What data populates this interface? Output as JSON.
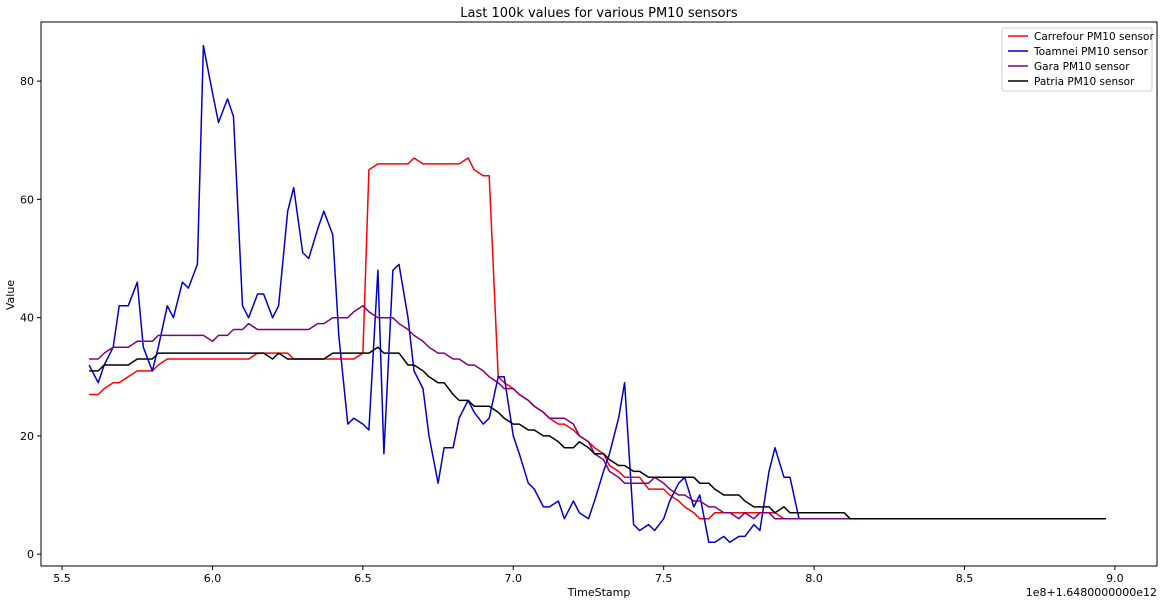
{
  "chart_data": {
    "type": "line",
    "title": "Last 100k values for various PM10 sensors",
    "xlabel": "TimeStamp",
    "ylabel": "Value",
    "x_offset_label": "1e8+1.6480000000e12",
    "xlim": [
      5.43,
      9.14
    ],
    "ylim": [
      -2,
      90
    ],
    "xticks": [
      "5.5",
      "6.0",
      "6.5",
      "7.0",
      "7.5",
      "8.0",
      "8.5",
      "9.0"
    ],
    "yticks": [
      "0",
      "20",
      "40",
      "60",
      "80"
    ],
    "xtick_values": [
      5.5,
      6.0,
      6.5,
      7.0,
      7.5,
      8.0,
      8.5,
      9.0
    ],
    "ytick_values": [
      0,
      20,
      40,
      60,
      80
    ],
    "grid": false,
    "legend_position": "top-right",
    "x": [
      5.59,
      5.62,
      5.64,
      5.67,
      5.69,
      5.72,
      5.75,
      5.77,
      5.8,
      5.82,
      5.85,
      5.87,
      5.9,
      5.92,
      5.95,
      5.97,
      6.0,
      6.02,
      6.05,
      6.07,
      6.1,
      6.12,
      6.15,
      6.17,
      6.2,
      6.22,
      6.25,
      6.27,
      6.3,
      6.32,
      6.35,
      6.37,
      6.4,
      6.42,
      6.45,
      6.47,
      6.5,
      6.52,
      6.55,
      6.57,
      6.6,
      6.62,
      6.65,
      6.67,
      6.7,
      6.72,
      6.75,
      6.77,
      6.8,
      6.82,
      6.85,
      6.87,
      6.9,
      6.92,
      6.95,
      6.97,
      7.0,
      7.02,
      7.05,
      7.07,
      7.1,
      7.12,
      7.15,
      7.17,
      7.2,
      7.22,
      7.25,
      7.27,
      7.3,
      7.32,
      7.35,
      7.37,
      7.4,
      7.42,
      7.45,
      7.47,
      7.5,
      7.52,
      7.55,
      7.57,
      7.6,
      7.62,
      7.65,
      7.67,
      7.7,
      7.72,
      7.75,
      7.77,
      7.8,
      7.82,
      7.85,
      7.87,
      7.9,
      7.92,
      7.95,
      7.97,
      8.0,
      8.02,
      8.05,
      8.07,
      8.1,
      8.12,
      8.15,
      8.17,
      8.2,
      8.22,
      8.25,
      8.27,
      8.3,
      8.32,
      8.35,
      8.37,
      8.4,
      8.42,
      8.45,
      8.47,
      8.5,
      8.52,
      8.55,
      8.57,
      8.6,
      8.62,
      8.65,
      8.67,
      8.7,
      8.72,
      8.75,
      8.77,
      8.8,
      8.82,
      8.85,
      8.87,
      8.9,
      8.92,
      8.95,
      8.97
    ],
    "series": [
      {
        "name": "Carrefour PM10 sensor",
        "color": "#ff0000",
        "values": [
          27,
          27,
          28,
          29,
          29,
          30,
          31,
          31,
          31,
          32,
          33,
          33,
          33,
          33,
          33,
          33,
          33,
          33,
          33,
          33,
          33,
          33,
          34,
          34,
          34,
          34,
          34,
          33,
          33,
          33,
          33,
          33,
          33,
          33,
          33,
          33,
          34,
          65,
          66,
          66,
          66,
          66,
          66,
          67,
          66,
          66,
          66,
          66,
          66,
          66,
          67,
          65,
          64,
          64,
          30,
          29,
          28,
          27,
          26,
          25,
          24,
          23,
          22,
          22,
          21,
          20,
          19,
          18,
          17,
          15,
          14,
          13,
          13,
          13,
          11,
          11,
          11,
          10,
          9,
          8,
          7,
          6,
          6,
          7,
          7,
          7,
          7,
          7,
          7,
          7,
          7,
          7,
          6,
          6,
          6,
          6,
          6,
          6,
          6,
          6,
          6,
          6,
          6,
          6,
          6,
          6,
          6,
          6,
          6,
          6,
          6,
          6,
          6,
          6,
          6,
          6,
          6,
          6,
          6,
          6,
          6,
          6,
          6,
          6,
          6,
          6,
          6,
          6,
          6,
          6,
          6,
          6,
          6,
          6,
          6,
          6
        ]
      },
      {
        "name": "Toamnei PM10 sensor",
        "color": "#0000cc",
        "values": [
          32,
          29,
          32,
          35,
          42,
          42,
          46,
          35,
          31,
          35,
          42,
          40,
          46,
          45,
          49,
          86,
          78,
          73,
          77,
          74,
          42,
          40,
          44,
          44,
          40,
          42,
          58,
          62,
          51,
          50,
          55,
          58,
          54,
          37,
          22,
          23,
          22,
          21,
          48,
          17,
          48,
          49,
          40,
          31,
          28,
          20,
          12,
          18,
          18,
          23,
          26,
          24,
          22,
          23,
          30,
          30,
          20,
          17,
          12,
          11,
          8,
          8,
          9,
          6,
          9,
          7,
          6,
          9,
          14,
          17,
          23,
          29,
          5,
          4,
          5,
          4,
          6,
          9,
          12,
          13,
          8,
          10,
          2,
          2,
          3,
          2,
          3,
          3,
          5,
          4,
          14,
          18,
          13,
          13,
          6,
          6,
          6,
          6,
          6,
          6,
          6,
          6,
          6,
          6,
          6,
          6,
          6,
          6,
          6,
          6,
          6,
          6,
          6,
          6,
          6,
          6,
          6,
          6,
          6,
          6,
          6,
          6,
          6,
          6,
          6,
          6,
          6,
          6,
          6,
          6,
          6,
          6,
          6,
          6,
          6,
          6
        ]
      },
      {
        "name": "Gara PM10 sensor",
        "color": "#800080",
        "values": [
          33,
          33,
          34,
          35,
          35,
          35,
          36,
          36,
          36,
          37,
          37,
          37,
          37,
          37,
          37,
          37,
          36,
          37,
          37,
          38,
          38,
          39,
          38,
          38,
          38,
          38,
          38,
          38,
          38,
          38,
          39,
          39,
          40,
          40,
          40,
          41,
          42,
          41,
          40,
          40,
          40,
          39,
          38,
          37,
          36,
          35,
          34,
          34,
          33,
          33,
          32,
          32,
          31,
          30,
          29,
          28,
          28,
          27,
          26,
          25,
          24,
          23,
          23,
          23,
          22,
          20,
          19,
          17,
          16,
          14,
          13,
          12,
          12,
          12,
          12,
          13,
          12,
          11,
          10,
          10,
          9,
          9,
          8,
          8,
          7,
          7,
          6,
          7,
          6,
          7,
          7,
          6,
          6,
          6,
          6,
          6,
          6,
          6,
          6,
          6,
          6,
          6,
          6,
          6,
          6,
          6,
          6,
          6,
          6,
          6,
          6,
          6,
          6,
          6,
          6,
          6,
          6,
          6,
          6,
          6,
          6,
          6,
          6,
          6,
          6,
          6,
          6,
          6,
          6,
          6,
          6,
          6,
          6,
          6,
          6,
          6
        ]
      },
      {
        "name": "Patria PM10 sensor",
        "color": "#000000",
        "values": [
          31,
          31,
          32,
          32,
          32,
          32,
          33,
          33,
          33,
          34,
          34,
          34,
          34,
          34,
          34,
          34,
          34,
          34,
          34,
          34,
          34,
          34,
          34,
          34,
          33,
          34,
          33,
          33,
          33,
          33,
          33,
          33,
          34,
          34,
          34,
          34,
          34,
          34,
          35,
          34,
          34,
          34,
          32,
          32,
          31,
          30,
          29,
          29,
          27,
          26,
          26,
          25,
          25,
          25,
          24,
          23,
          22,
          22,
          21,
          21,
          20,
          20,
          19,
          18,
          18,
          19,
          18,
          17,
          17,
          16,
          15,
          15,
          14,
          14,
          13,
          13,
          13,
          13,
          13,
          13,
          13,
          12,
          12,
          11,
          10,
          10,
          10,
          9,
          8,
          8,
          8,
          7,
          8,
          7,
          7,
          7,
          7,
          7,
          7,
          7,
          7,
          6,
          6,
          6,
          6,
          6,
          6,
          6,
          6,
          6,
          6,
          6,
          6,
          6,
          6,
          6,
          6,
          6,
          6,
          6,
          6,
          6,
          6,
          6,
          6,
          6,
          6,
          6,
          6,
          6,
          6,
          6,
          6,
          6,
          6,
          6
        ]
      }
    ]
  }
}
